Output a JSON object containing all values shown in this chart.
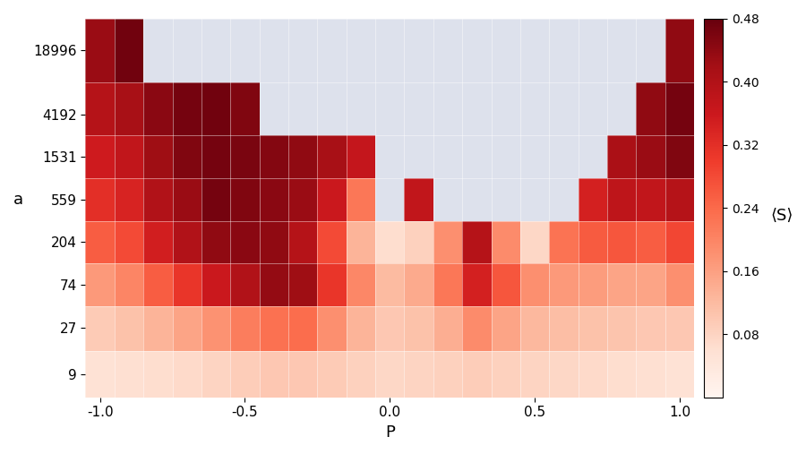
{
  "y_labels": [
    9,
    27,
    74,
    204,
    559,
    1531,
    4192,
    18996
  ],
  "x_values": [
    -1.0,
    -0.9,
    -0.8,
    -0.7,
    -0.6,
    -0.5,
    -0.4,
    -0.3,
    -0.2,
    -0.1,
    0.0,
    0.1,
    0.2,
    0.3,
    0.4,
    0.5,
    0.6,
    0.7,
    0.8,
    0.9,
    1.0
  ],
  "xlabel": "P",
  "ylabel": "a",
  "colorbar_label": "⟨S⟩",
  "vmin": 0.0,
  "vmax": 0.48,
  "colorbar_ticks": [
    0.08,
    0.16,
    0.24,
    0.32,
    0.4,
    0.48
  ],
  "nan_color": "#dde1ec",
  "data": [
    [
      0.055,
      0.06,
      0.065,
      0.07,
      0.08,
      0.09,
      0.1,
      0.1,
      0.095,
      0.085,
      0.075,
      0.08,
      0.085,
      0.09,
      0.085,
      0.08,
      0.075,
      0.07,
      0.065,
      0.06,
      0.055
    ],
    [
      0.095,
      0.11,
      0.13,
      0.155,
      0.18,
      0.21,
      0.23,
      0.235,
      0.185,
      0.13,
      0.1,
      0.11,
      0.14,
      0.19,
      0.155,
      0.125,
      0.115,
      0.11,
      0.105,
      0.1,
      0.1
    ],
    [
      0.17,
      0.2,
      0.255,
      0.31,
      0.36,
      0.4,
      0.435,
      0.425,
      0.31,
      0.195,
      0.12,
      0.145,
      0.22,
      0.345,
      0.265,
      0.185,
      0.17,
      0.165,
      0.155,
      0.155,
      0.185
    ],
    [
      0.255,
      0.28,
      0.35,
      0.4,
      0.44,
      0.445,
      0.44,
      0.395,
      0.28,
      0.13,
      0.065,
      0.085,
      0.185,
      0.395,
      0.19,
      0.075,
      0.225,
      0.26,
      0.265,
      0.255,
      0.285
    ],
    [
      0.32,
      0.34,
      0.4,
      0.43,
      0.465,
      0.455,
      0.445,
      0.43,
      0.36,
      0.22,
      null,
      0.375,
      null,
      null,
      null,
      null,
      null,
      0.345,
      0.38,
      0.375,
      0.395
    ],
    [
      0.355,
      0.375,
      0.425,
      0.455,
      0.465,
      0.46,
      0.45,
      0.44,
      0.415,
      0.37,
      null,
      null,
      null,
      null,
      null,
      null,
      null,
      null,
      0.41,
      0.43,
      0.455
    ],
    [
      0.395,
      0.415,
      0.445,
      0.465,
      0.47,
      0.455,
      null,
      null,
      null,
      null,
      null,
      null,
      null,
      null,
      null,
      null,
      null,
      null,
      null,
      0.44,
      0.465
    ],
    [
      0.43,
      0.47,
      null,
      null,
      null,
      null,
      null,
      null,
      null,
      null,
      null,
      null,
      null,
      null,
      null,
      null,
      null,
      null,
      null,
      null,
      0.44
    ]
  ],
  "figsize": [
    9.0,
    5.07
  ],
  "dpi": 100
}
